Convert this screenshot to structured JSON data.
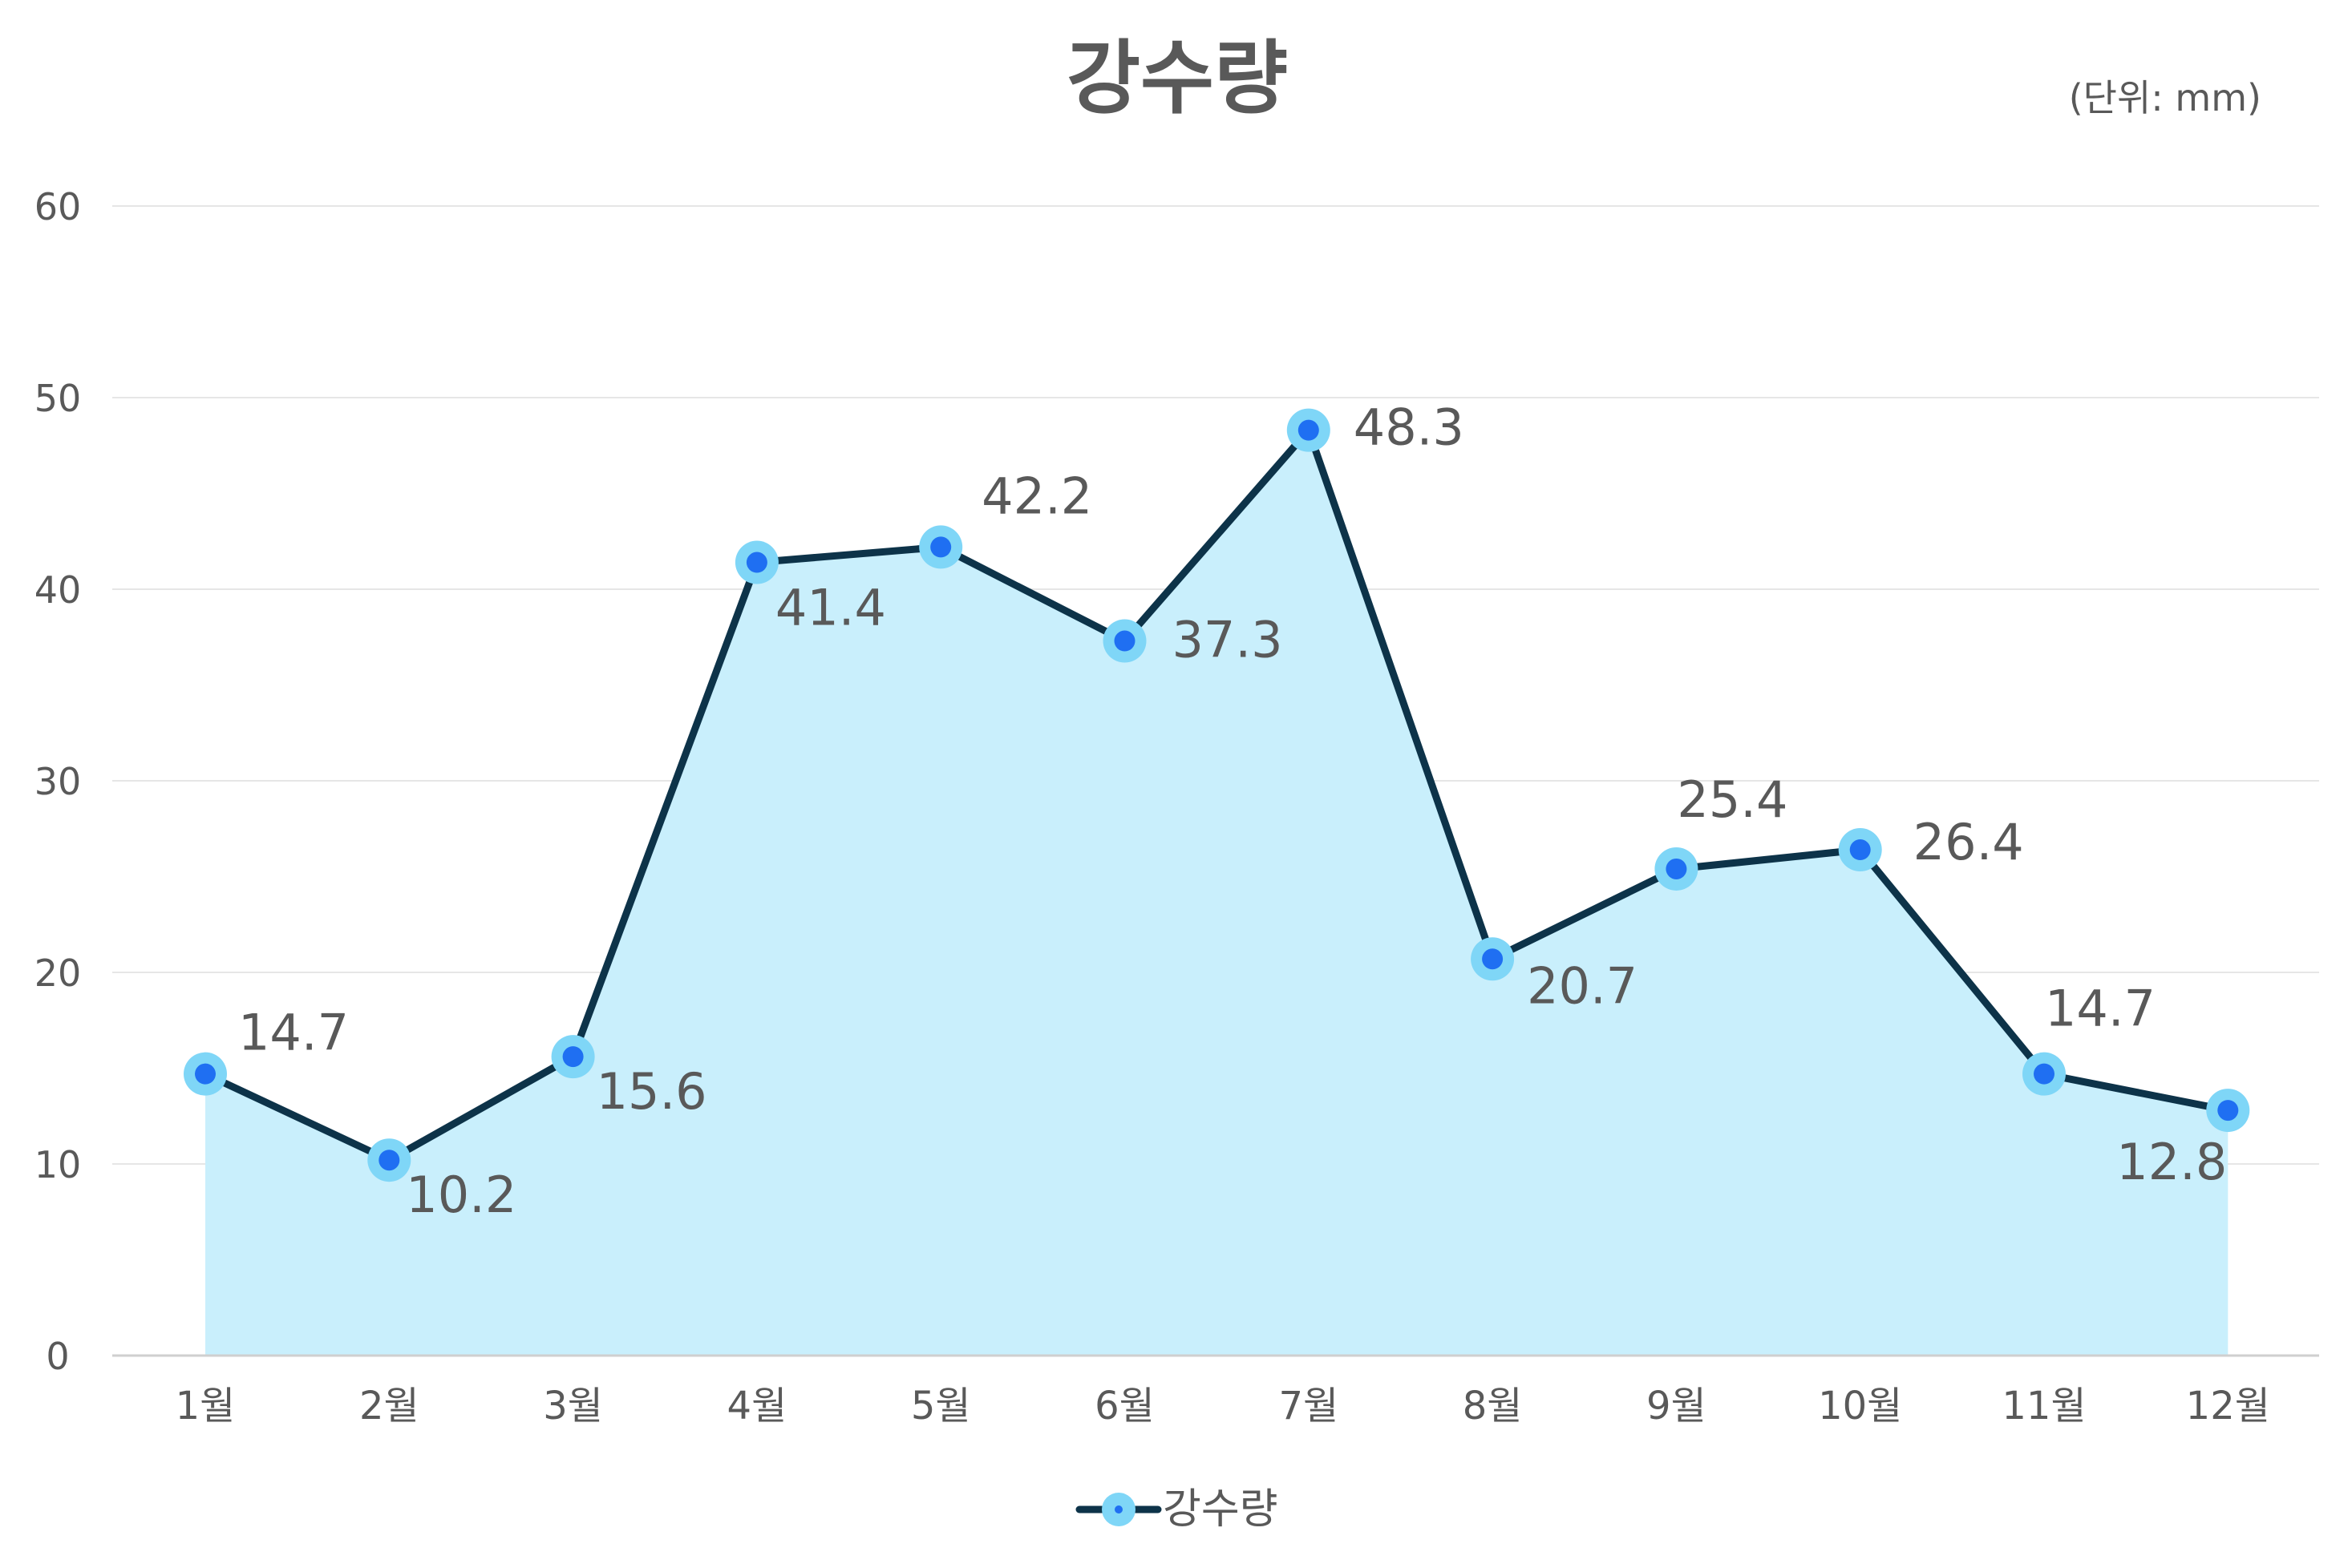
{
  "chart_data": {
    "type": "area",
    "title": "강수량",
    "unit_note": "(단위: mm)",
    "categories": [
      "1월",
      "2월",
      "3월",
      "4월",
      "5월",
      "6월",
      "7월",
      "8월",
      "9월",
      "10월",
      "11월",
      "12월"
    ],
    "series": [
      {
        "name": "강수량",
        "values": [
          14.7,
          10.2,
          15.6,
          41.4,
          42.2,
          37.3,
          48.3,
          20.7,
          25.4,
          26.4,
          14.7,
          12.8
        ]
      }
    ],
    "data_labels": [
      "14.7",
      "10.2",
      "15.6",
      "41.4",
      "42.2",
      "37.3",
      "48.3",
      "20.7",
      "25.4",
      "26.4",
      "14.7",
      "12.8"
    ],
    "yticks": [
      "0",
      "10",
      "20",
      "30",
      "40",
      "50",
      "60"
    ],
    "ylim": [
      0,
      60
    ],
    "grid": true,
    "legend_position": "bottom",
    "colors": {
      "line": "#0d3349",
      "area_fill": "#c9effc",
      "marker_outer": "#7fd6f7",
      "marker_inner": "#1f6ff2",
      "text": "#595959",
      "grid": "#e6e6e6",
      "axis": "#cfcfcf"
    }
  }
}
